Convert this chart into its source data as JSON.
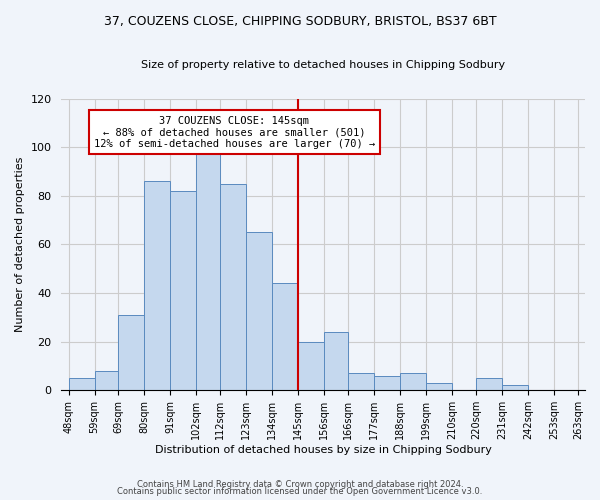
{
  "title": "37, COUZENS CLOSE, CHIPPING SODBURY, BRISTOL, BS37 6BT",
  "subtitle": "Size of property relative to detached houses in Chipping Sodbury",
  "xlabel": "Distribution of detached houses by size in Chipping Sodbury",
  "ylabel": "Number of detached properties",
  "bin_edges": [
    48,
    59,
    69,
    80,
    91,
    102,
    112,
    123,
    134,
    145,
    156,
    166,
    177,
    188,
    199,
    210,
    220,
    231,
    242,
    253,
    263
  ],
  "counts": [
    5,
    8,
    31,
    86,
    82,
    98,
    85,
    65,
    44,
    20,
    24,
    7,
    6,
    7,
    3,
    0,
    5,
    2,
    0,
    0
  ],
  "bar_color": "#c5d8ee",
  "bar_edge_color": "#5a8abf",
  "reference_line_x": 145,
  "reference_line_color": "#cc0000",
  "annotation_title": "37 COUZENS CLOSE: 145sqm",
  "annotation_line1": "← 88% of detached houses are smaller (501)",
  "annotation_line2": "12% of semi-detached houses are larger (70) →",
  "annotation_box_color": "#ffffff",
  "annotation_box_edge_color": "#cc0000",
  "ylim": [
    0,
    120
  ],
  "tick_labels": [
    "48sqm",
    "59sqm",
    "69sqm",
    "80sqm",
    "91sqm",
    "102sqm",
    "112sqm",
    "123sqm",
    "134sqm",
    "145sqm",
    "156sqm",
    "166sqm",
    "177sqm",
    "188sqm",
    "199sqm",
    "210sqm",
    "220sqm",
    "231sqm",
    "242sqm",
    "253sqm",
    "263sqm"
  ],
  "footnote1": "Contains HM Land Registry data © Crown copyright and database right 2024.",
  "footnote2": "Contains public sector information licensed under the Open Government Licence v3.0.",
  "background_color": "#f0f4fa",
  "plot_bg_color": "#f0f4fa",
  "grid_color": "#cccccc",
  "title_fontsize": 9,
  "subtitle_fontsize": 8,
  "ylabel_fontsize": 8,
  "xlabel_fontsize": 8,
  "tick_fontsize": 7,
  "ann_fontsize": 7.5,
  "footnote_fontsize": 6
}
